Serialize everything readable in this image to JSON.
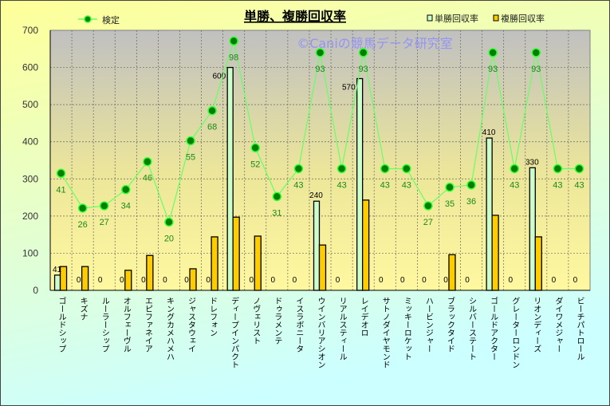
{
  "chart_data": {
    "type": "bar",
    "title": "単勝、複勝回収率",
    "watermark": "©Caniの競馬データ研究室",
    "xlabel": "",
    "ylabel": "",
    "ylim": [
      0,
      700
    ],
    "yticks": [
      "0",
      "100",
      "200",
      "300",
      "400",
      "500",
      "600",
      "700"
    ],
    "grid": true,
    "legend": {
      "line_position": "top-left",
      "bars_position": "top-right"
    },
    "categories": [
      "ゴールドシップ",
      "キズナ",
      "ルーラーシップ",
      "オルフェーヴル",
      "エピファネイア",
      "キングカメハメハ",
      "ジャスタウェイ",
      "ドレフォン",
      "ディープインパクト",
      "ノヴェリスト",
      "ドゥラメンテ",
      "イスラボニータ",
      "ウインバリアシオン",
      "リアルスティール",
      "レイデオロ",
      "サトノダイヤモンド",
      "ミッキーロケット",
      "ハービンジャー",
      "ブラックタイド",
      "シルバーステート",
      "ゴールドアクター",
      "グレーターロンドン",
      "リオンディーズ",
      "ダイワメジャー",
      "ビーチパトロール"
    ],
    "series": [
      {
        "name": "単勝回収率",
        "type": "bar",
        "color": "#ccffcc",
        "values": [
          41,
          0,
          0,
          0,
          0,
          0,
          0,
          0,
          600,
          0,
          0,
          0,
          240,
          0,
          570,
          0,
          0,
          0,
          0,
          0,
          410,
          0,
          330,
          0,
          0
        ]
      },
      {
        "name": "複勝回収率",
        "type": "bar",
        "color": "#ffcc00",
        "values": [
          64,
          64,
          0,
          54,
          94,
          0,
          58,
          144,
          197,
          146,
          0,
          0,
          122,
          0,
          243,
          0,
          0,
          0,
          96,
          0,
          202,
          0,
          144,
          0,
          0
        ]
      },
      {
        "name": "検定",
        "type": "line",
        "color": "#66ff66",
        "marker_color": "#008000",
        "secondary_axis_range": [
          -9.4,
          102.6
        ],
        "values": [
          41,
          26,
          27,
          34,
          46,
          20,
          55,
          68,
          98,
          52,
          31,
          43,
          93,
          43,
          93,
          43,
          43,
          27,
          35,
          36,
          93,
          43,
          93,
          43,
          43
        ]
      }
    ]
  }
}
